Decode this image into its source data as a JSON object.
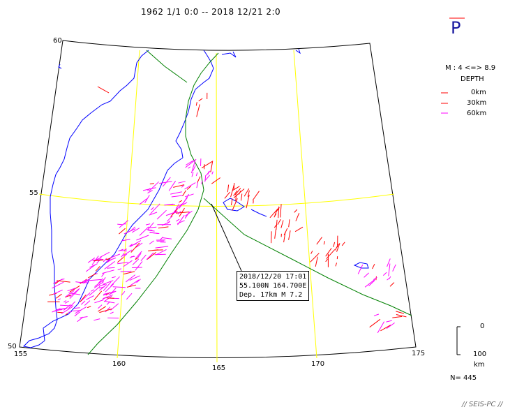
{
  "title": "1962 1/1 0:0 -- 2018 12/21 2:0",
  "wave_type": "P",
  "legend": {
    "magnitude": "M : 4 <=> 8.9",
    "depth_title": "DEPTH",
    "depths": [
      {
        "label": "0km",
        "color": "#ff0000"
      },
      {
        "label": "30km",
        "color": "#ff0000"
      },
      {
        "label": "60km",
        "color": "#ff00ff"
      }
    ]
  },
  "depth_scale": {
    "top": "0",
    "bottom": "100",
    "unit": "km"
  },
  "count": "N= 445",
  "lat_labels": [
    "60",
    "55",
    "50"
  ],
  "lon_labels": [
    "155",
    "160",
    "165",
    "170",
    "175"
  ],
  "event": {
    "datetime": "2018/12/20 17:01",
    "location": "55.100N  164.700E",
    "depth_mag": "Dep. 17km    M 7.2"
  },
  "footer": "// SEIS-PC //",
  "colors": {
    "coast": "#0000ff",
    "grid": "#ffff00",
    "plate": "#008000",
    "shallow": "#ff0000",
    "deep": "#ff00ff"
  }
}
